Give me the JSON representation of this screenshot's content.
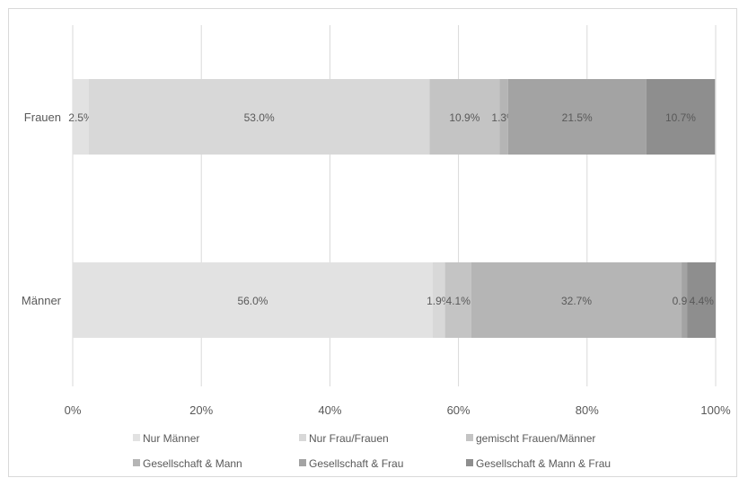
{
  "chart_data": {
    "type": "bar",
    "orientation": "horizontal",
    "stacked": "percent",
    "categories": [
      "Frauen",
      "Männer"
    ],
    "series": [
      {
        "name": "Nur Männer",
        "values": [
          2.5,
          56.0
        ],
        "labels": [
          "2.5%",
          "56.0%"
        ],
        "color": "#e2e2e2"
      },
      {
        "name": "Nur Frau/Frauen",
        "values": [
          53.0,
          1.9
        ],
        "labels": [
          "53.0%",
          "1.9%"
        ],
        "color": "#d8d8d8"
      },
      {
        "name": "gemischt Frauen/Männer",
        "values": [
          10.9,
          4.1
        ],
        "labels": [
          "10.9%",
          "4.1%"
        ],
        "color": "#c4c4c4"
      },
      {
        "name": "Gesellschaft & Mann",
        "values": [
          1.3,
          32.7
        ],
        "labels": [
          "1.3%",
          "32.7%"
        ],
        "color": "#b5b5b5"
      },
      {
        "name": "Gesellschaft & Frau",
        "values": [
          21.5,
          0.9
        ],
        "labels": [
          "21.5%",
          "0.9%"
        ],
        "color": "#a3a3a3"
      },
      {
        "name": "Gesellschaft & Mann & Frau",
        "values": [
          10.7,
          4.4
        ],
        "labels": [
          "10.7%",
          "4.4%"
        ],
        "color": "#8e8e8e"
      }
    ],
    "x_ticks": [
      "0%",
      "20%",
      "40%",
      "60%",
      "80%",
      "100%"
    ],
    "xlim": [
      0,
      100
    ],
    "grid": true,
    "legend_position": "bottom",
    "title": "",
    "xlabel": "",
    "ylabel": ""
  }
}
